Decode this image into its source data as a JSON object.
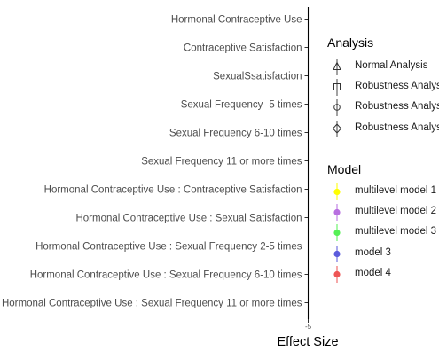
{
  "chart_data": {
    "type": "scatter",
    "title": "",
    "xlabel": "Effect Size",
    "ylabel": "",
    "categories": [
      "Hormonal Contraceptive Use",
      "Contraceptive Satisfaction",
      "SexualSsatisfaction",
      "Sexual Frequency -5 times",
      "Sexual Frequency 6-10 times",
      "Sexual Frequency 11 or more times",
      "Hormonal Contraceptive Use : Contraceptive Satisfaction",
      "Hormonal Contraceptive Use : Sexual Satisfaction",
      "Hormonal Contraceptive Use : Sexual Frequency 2-5 times",
      "Hormonal Contraceptive Use : Sexual Frequency 6-10 times",
      "Hormonal Contraceptive Use : Sexual Frequency 11 or more times"
    ],
    "x_ticks": [
      "-5"
    ],
    "grid": false,
    "legend_placement": "right",
    "series": []
  },
  "legend_analysis": {
    "title": "Analysis",
    "items": [
      {
        "label": "Normal Analysis",
        "shape": "triangle-icon"
      },
      {
        "label": "Robustness Analysis",
        "shape": "square-icon"
      },
      {
        "label": "Robustness Analysis",
        "shape": "circle-icon"
      },
      {
        "label": "Robustness Analysis",
        "shape": "diamond-icon"
      }
    ]
  },
  "legend_model": {
    "title": "Model",
    "items": [
      {
        "label": "multilevel model 1",
        "color": "#ffff00"
      },
      {
        "label": "multilevel model 2",
        "color": "#b86fe0"
      },
      {
        "label": "multilevel model 3",
        "color": "#55f055"
      },
      {
        "label": "model 3",
        "color": "#5b5bdc"
      },
      {
        "label": "model 4",
        "color": "#ee5555"
      }
    ]
  }
}
